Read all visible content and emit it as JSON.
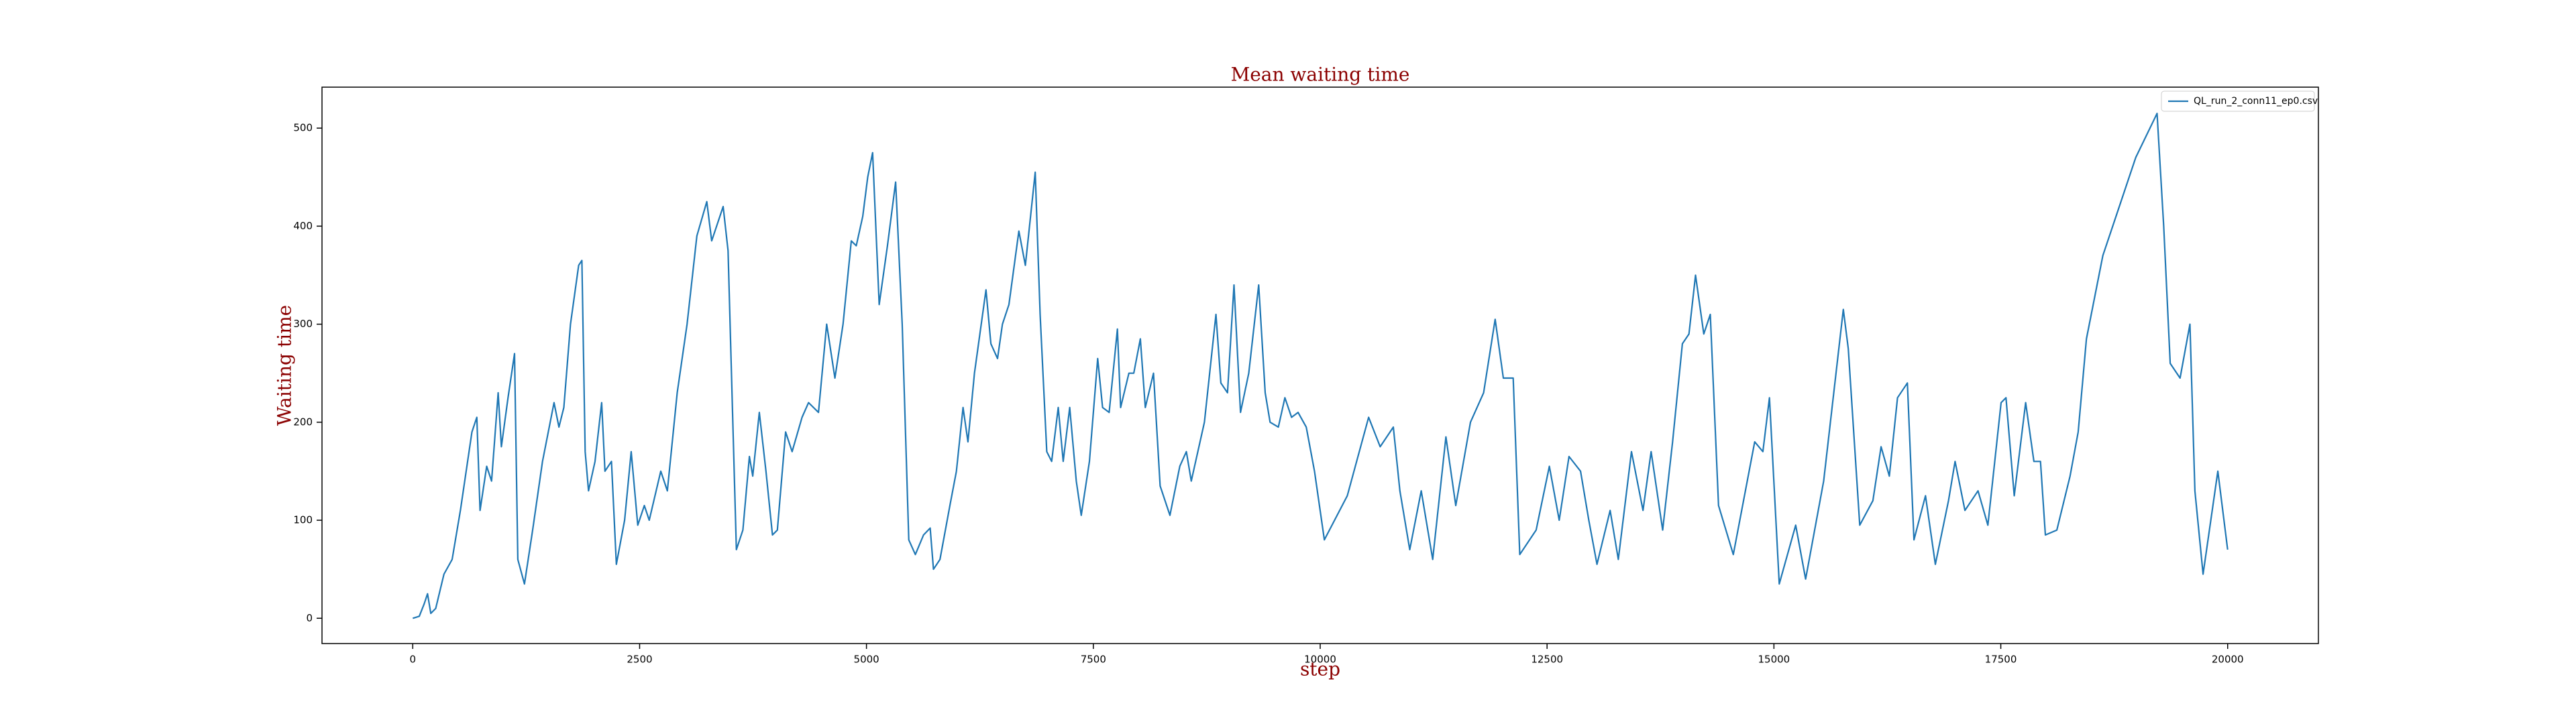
{
  "chart_data": {
    "type": "line",
    "title": "Mean waiting time",
    "x_label": "step",
    "y_label": "Waiting time",
    "x": [
      0,
      72,
      127,
      163,
      199,
      253,
      344,
      434,
      525,
      652,
      706,
      742,
      815,
      869,
      941,
      977,
      1050,
      1122,
      1158,
      1231,
      1321,
      1430,
      1557,
      1611,
      1665,
      1738,
      1828,
      1864,
      1900,
      1937,
      2009,
      2082,
      2118,
      2190,
      2244,
      2335,
      2407,
      2480,
      2552,
      2606,
      2733,
      2806,
      2914,
      3023,
      3131,
      3240,
      3294,
      3367,
      3421,
      3475,
      3530,
      3566,
      3638,
      3710,
      3747,
      3819,
      3892,
      3964,
      4018,
      4109,
      4181,
      4290,
      4362,
      4471,
      4561,
      4652,
      4742,
      4833,
      4887,
      4959,
      5014,
      5068,
      5140,
      5231,
      5321,
      5394,
      5466,
      5539,
      5629,
      5702,
      5738,
      5810,
      5919,
      5991,
      6064,
      6118,
      6190,
      6317,
      6371,
      6444,
      6498,
      6570,
      6679,
      6751,
      6860,
      6914,
      6987,
      7041,
      7113,
      7168,
      7240,
      7312,
      7367,
      7457,
      7548,
      7602,
      7674,
      7765,
      7801,
      7892,
      7946,
      8018,
      8073,
      8163,
      8236,
      8344,
      8453,
      8525,
      8579,
      8724,
      8851,
      8905,
      8978,
      9050,
      9122,
      9213,
      9322,
      9394,
      9448,
      9539,
      9611,
      9684,
      9756,
      9846,
      9937,
      10046,
      10299,
      10534,
      10661,
      10806,
      10878,
      10987,
      11113,
      11240,
      11385,
      11494,
      11656,
      11801,
      11928,
      12018,
      12127,
      12199,
      12380,
      12525,
      12634,
      12742,
      12869,
      12960,
      13050,
      13195,
      13285,
      13430,
      13557,
      13647,
      13774,
      13883,
      13991,
      14064,
      14136,
      14227,
      14299,
      14390,
      14552,
      14788,
      14878,
      14951,
      15059,
      15240,
      15349,
      15548,
      15765,
      15819,
      15946,
      16091,
      16181,
      16272,
      16362,
      16471,
      16543,
      16670,
      16779,
      16924,
      16996,
      17105,
      17249,
      17358,
      17503,
      17557,
      17648,
      17774,
      17865,
      17937,
      17991,
      18118,
      18263,
      18353,
      18444,
      18625,
      18806,
      18987,
      19222,
      19295,
      19367,
      19476,
      19584,
      19639,
      19729,
      19892,
      20000
    ],
    "series": [
      {
        "name": "QL_run_2_conn11_ep0.csv",
        "color": "#1f77b4",
        "values": [
          0,
          2,
          15,
          25,
          5,
          10,
          45,
          60,
          110,
          190,
          205,
          110,
          155,
          140,
          230,
          175,
          225,
          270,
          60,
          35,
          90,
          160,
          220,
          195,
          215,
          300,
          360,
          365,
          170,
          130,
          160,
          220,
          150,
          160,
          55,
          100,
          170,
          95,
          115,
          100,
          150,
          130,
          230,
          300,
          390,
          425,
          385,
          405,
          420,
          375,
          190,
          70,
          90,
          165,
          145,
          210,
          150,
          85,
          90,
          190,
          170,
          205,
          220,
          210,
          300,
          245,
          300,
          385,
          380,
          410,
          450,
          475,
          320,
          380,
          445,
          300,
          80,
          65,
          85,
          92,
          50,
          60,
          115,
          150,
          215,
          180,
          250,
          335,
          280,
          265,
          300,
          320,
          395,
          360,
          455,
          310,
          170,
          160,
          215,
          160,
          215,
          140,
          105,
          160,
          265,
          215,
          210,
          295,
          215,
          250,
          250,
          285,
          215,
          250,
          135,
          105,
          155,
          170,
          140,
          200,
          310,
          240,
          230,
          340,
          210,
          250,
          340,
          230,
          200,
          195,
          225,
          205,
          210,
          195,
          150,
          80,
          125,
          205,
          175,
          195,
          130,
          70,
          130,
          60,
          185,
          115,
          200,
          230,
          305,
          245,
          245,
          65,
          90,
          155,
          100,
          165,
          150,
          100,
          55,
          110,
          60,
          170,
          110,
          170,
          90,
          180,
          280,
          290,
          350,
          290,
          310,
          115,
          65,
          180,
          170,
          225,
          35,
          95,
          40,
          140,
          315,
          275,
          95,
          120,
          175,
          145,
          225,
          240,
          80,
          125,
          55,
          120,
          160,
          110,
          130,
          95,
          220,
          225,
          125,
          220,
          160,
          160,
          85,
          90,
          145,
          190,
          285,
          370,
          420,
          470,
          515,
          400,
          260,
          245,
          300,
          130,
          45,
          150,
          70
        ]
      }
    ],
    "xlim": [
      -1000,
      21000
    ],
    "ylim": [
      -25.8,
      541.8
    ],
    "xticks": [
      0,
      2500,
      5000,
      7500,
      10000,
      12500,
      15000,
      17500,
      20000
    ],
    "yticks": [
      0,
      100,
      200,
      300,
      400,
      500
    ],
    "grid": false,
    "legend": "upper right"
  }
}
